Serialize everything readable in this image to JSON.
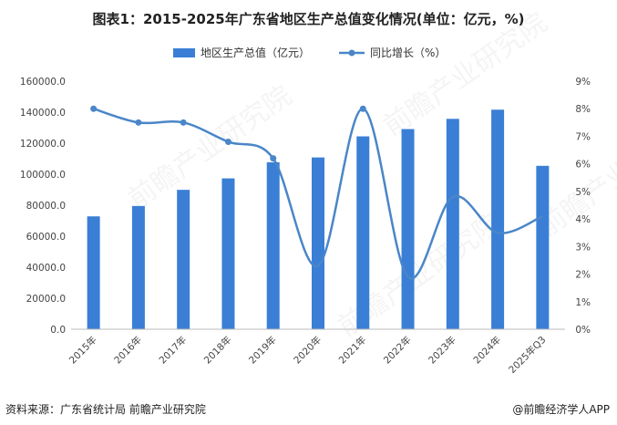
{
  "title": "图表1：2015-2025年广东省地区生产总值变化情况(单位：亿元，%)",
  "footer": {
    "source": "资料来源：广东省统计局 前瞻产业研究院",
    "brand": "@前瞻经济学人APP"
  },
  "watermark": "前瞻产业研究院",
  "colors": {
    "bar": "#3a7fd5",
    "line": "#4a86c8",
    "axis": "#bbbbbb"
  },
  "chart_data": {
    "type": "bar",
    "categories": [
      "2015年",
      "2016年",
      "2017年",
      "2018年",
      "2019年",
      "2020年",
      "2021年",
      "2022年",
      "2023年",
      "2024年",
      "2025年Q3"
    ],
    "series": [
      {
        "name": "地区生产总值（亿元）",
        "type": "bar",
        "axis": "left",
        "values": [
          72800,
          79500,
          89900,
          97300,
          107700,
          110800,
          124400,
          129100,
          135700,
          141600,
          105400
        ]
      },
      {
        "name": "同比增长（%）",
        "type": "line",
        "axis": "right",
        "values": [
          8.0,
          7.5,
          7.5,
          6.8,
          6.2,
          2.3,
          8.0,
          1.9,
          4.8,
          3.5,
          4.1
        ]
      }
    ],
    "left_axis": {
      "min": 0,
      "max": 160000,
      "step": 20000,
      "tick_labels": [
        "0.0",
        "20000.0",
        "40000.0",
        "60000.0",
        "80000.0",
        "100000.0",
        "120000.0",
        "140000.0",
        "160000.0"
      ]
    },
    "right_axis": {
      "min": 0,
      "max": 9,
      "step": 1,
      "tick_labels": [
        "0%",
        "1%",
        "2%",
        "3%",
        "4%",
        "5%",
        "6%",
        "7%",
        "8%",
        "9%"
      ]
    },
    "legend_position": "top",
    "grid": false
  }
}
